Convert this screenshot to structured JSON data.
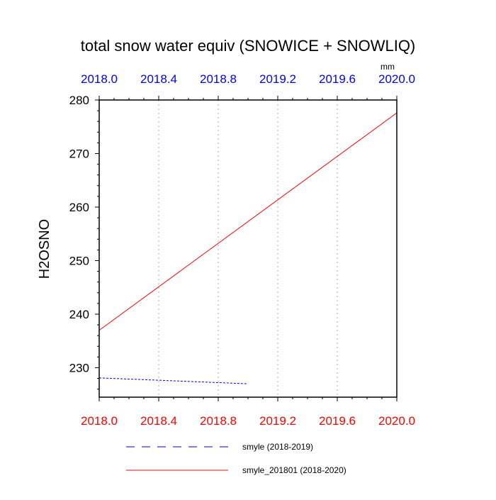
{
  "chart_data": {
    "type": "line",
    "title": "total snow water equiv (SNOWICE + SNOWLIQ)",
    "units": "mm",
    "xlabel": "",
    "ylabel": "H2OSNO",
    "xlim": [
      2018.0,
      2020.0
    ],
    "ylim": [
      224.5,
      280
    ],
    "x_ticks": [
      "2018.0",
      "2018.4",
      "2018.8",
      "2019.2",
      "2019.6",
      "2020.0"
    ],
    "x_tick_values": [
      2018.0,
      2018.4,
      2018.8,
      2019.2,
      2019.6,
      2020.0
    ],
    "y_ticks": [
      230,
      240,
      250,
      260,
      270,
      280
    ],
    "grid": "vertical dotted",
    "legend_position": "bottom",
    "top_axis_color": "#0000ff",
    "bottom_axis_color": "#ff0000",
    "series": [
      {
        "name": "smyle (2018-2019)",
        "color": "#0000ff",
        "dash": "dashed",
        "x": [
          2018.0,
          2019.0
        ],
        "y": [
          228.1,
          227.0
        ]
      },
      {
        "name": "smyle_201801 (2018-2020)",
        "color": "#ff0000",
        "dash": "solid",
        "x": [
          2018.0,
          2020.0
        ],
        "y": [
          237.0,
          277.6
        ]
      }
    ]
  }
}
